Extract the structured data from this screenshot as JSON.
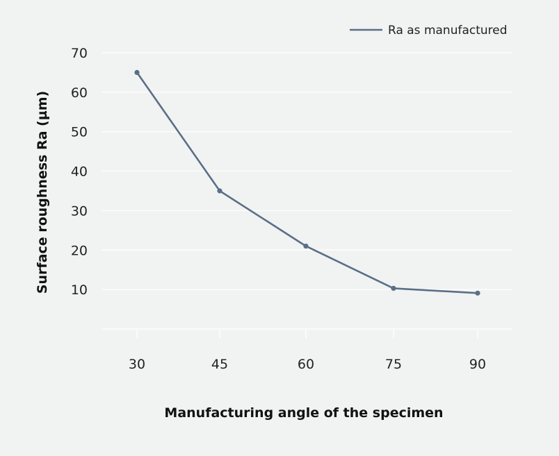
{
  "colors": {
    "background": "#f1f2f2",
    "series": "#5a6f86",
    "grid": "#ffffff"
  },
  "chart_data": {
    "type": "line",
    "title": "",
    "xlabel": "Manufacturing angle of the specimen",
    "ylabel": "Surface roughness Ra (µm)",
    "categories": [
      "30",
      "45",
      "60",
      "75",
      "90"
    ],
    "yticks": [
      "10",
      "20",
      "30",
      "40",
      "50",
      "60",
      "70"
    ],
    "ylim": [
      0,
      70
    ],
    "grid": true,
    "legend": "top-right",
    "series": [
      {
        "name": "Ra as manufactured",
        "color": "#5a6f86",
        "values": [
          65,
          35,
          21,
          10.3,
          9.1
        ]
      }
    ]
  }
}
